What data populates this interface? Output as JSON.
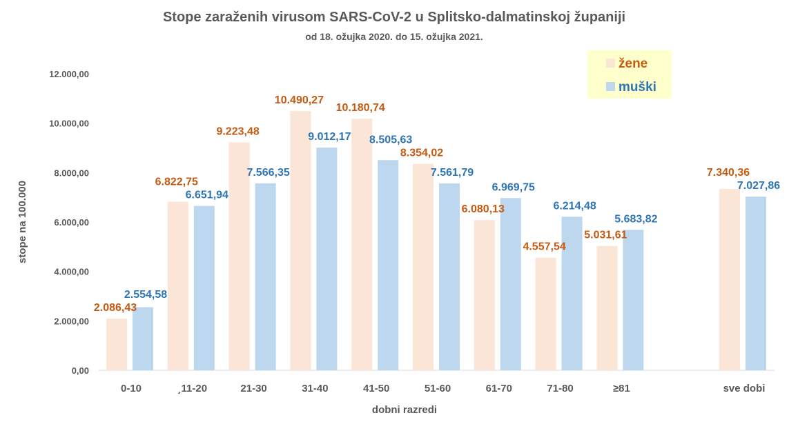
{
  "chart_data": {
    "type": "bar",
    "title": "Stope zaraženih virusom SARS-CoV-2 u Splitsko-dalmatinskoj županiji",
    "subtitle": "od 18. ožujka 2020. do 15. ožujka 2021.",
    "xlabel": "dobni razredi",
    "ylabel": "stope na 100.000",
    "ylim": [
      0,
      12000
    ],
    "yticks": [
      "0,00",
      "2.000,00",
      "4.000,00",
      "6.000,00",
      "8.000,00",
      "10.000,00",
      "12.000,00"
    ],
    "categories": [
      "0-10",
      "¸11-20",
      "21-30",
      "31-40",
      "41-50",
      "51-60",
      "61-70",
      "71-80",
      "≥81",
      "",
      "sve dobi"
    ],
    "grid": false,
    "legend_position": "top-right",
    "series": [
      {
        "name": "žene",
        "color": "#FBE5D6",
        "label_color": "#C55A11",
        "values": [
          2086.43,
          6822.75,
          9223.48,
          10490.27,
          10180.74,
          8354.02,
          6080.13,
          4557.54,
          5031.61,
          null,
          7340.36
        ],
        "labels": [
          "2.086,43",
          "6.822,75",
          "9.223,48",
          "10.490,27",
          "10.180,74",
          "8.354,02",
          "6.080,13",
          "4.557,54",
          "5.031,61",
          "",
          "7.340,36"
        ]
      },
      {
        "name": "muški",
        "color": "#BDD7EE",
        "label_color": "#2E75B6",
        "values": [
          2554.58,
          6651.94,
          7566.35,
          9012.17,
          8505.63,
          7561.79,
          6969.75,
          6214.48,
          5683.82,
          null,
          7027.86
        ],
        "labels": [
          "2.554,58",
          "6.651,94",
          "7.566,35",
          "9.012,17",
          "8.505,63",
          "7.561,79",
          "6.969,75",
          "6.214,48",
          "5.683,82",
          "",
          "7.027,86"
        ]
      }
    ]
  }
}
